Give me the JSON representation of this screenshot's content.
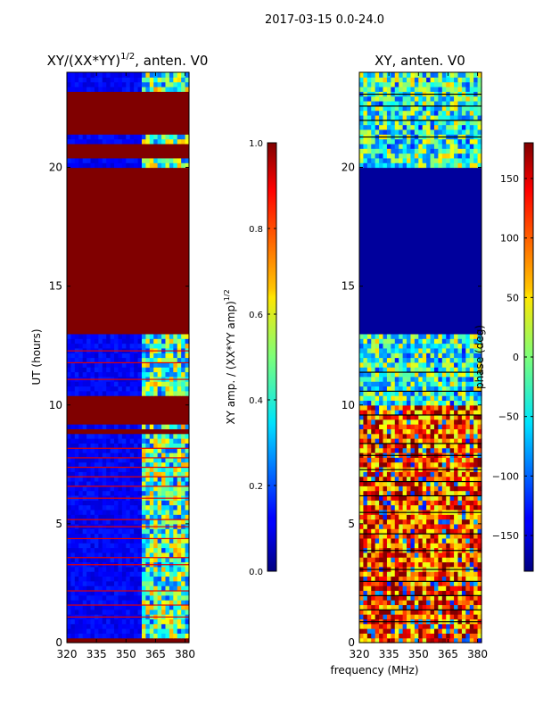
{
  "figure": {
    "suptitle": "2017-03-15 0.0-24.0",
    "xlabel": "frequency (MHz)"
  },
  "chart_data": [
    {
      "type": "heatmap",
      "title_prefix": "XY/(XX*YY)",
      "title_exponent": "1/2",
      "title_suffix": ", anten. V0",
      "xlabel": "",
      "ylabel": "UT (hours)",
      "xlim": [
        320,
        382
      ],
      "ylim": [
        0,
        24
      ],
      "xticks": [
        320,
        335,
        350,
        365,
        380
      ],
      "yticks": [
        0,
        5,
        10,
        15,
        20
      ],
      "colormap": "jet",
      "colorbar": {
        "label_prefix": "XY amp. / (XX*YY amp)",
        "label_exponent": "1/2",
        "lim": [
          0.0,
          1.0
        ],
        "ticks": [
          0.0,
          0.2,
          0.4,
          0.6,
          0.8,
          1.0
        ],
        "tick_labels": [
          "0.0",
          "0.2",
          "0.4",
          "0.6",
          "0.8",
          "1.0"
        ]
      },
      "flagged_value": 1.0,
      "flagged_ut_bands": [
        [
          0.0,
          0.25
        ],
        [
          8.75,
          9.0
        ],
        [
          9.15,
          9.9
        ],
        [
          10.05,
          10.3
        ],
        [
          12.9,
          20.0
        ],
        [
          20.35,
          21.1
        ],
        [
          21.35,
          23.3
        ]
      ],
      "active_freq_range_mhz": [
        359,
        381
      ],
      "typical_value_quiet": 0.12,
      "typical_value_active": 0.45
    },
    {
      "type": "heatmap",
      "title": "XY, anten. V0",
      "xlabel": "",
      "ylabel": "",
      "xlim": [
        320,
        382
      ],
      "ylim": [
        0,
        24
      ],
      "xticks": [
        320,
        335,
        350,
        365,
        380
      ],
      "yticks": [
        0,
        5,
        10,
        15,
        20
      ],
      "colormap": "jet",
      "colorbar": {
        "label": "phase (deg)",
        "lim": [
          -180,
          180
        ],
        "ticks": [
          -150,
          -100,
          -50,
          0,
          50,
          100,
          150
        ],
        "tick_labels": [
          "−150",
          "−100",
          "−50",
          "0",
          "50",
          "100",
          "150"
        ]
      },
      "flagged_value": -180,
      "flagged_ut_bands": [
        [
          12.9,
          20.0
        ]
      ],
      "typical_phase_morning": 110,
      "typical_phase_midday": -20
    }
  ]
}
